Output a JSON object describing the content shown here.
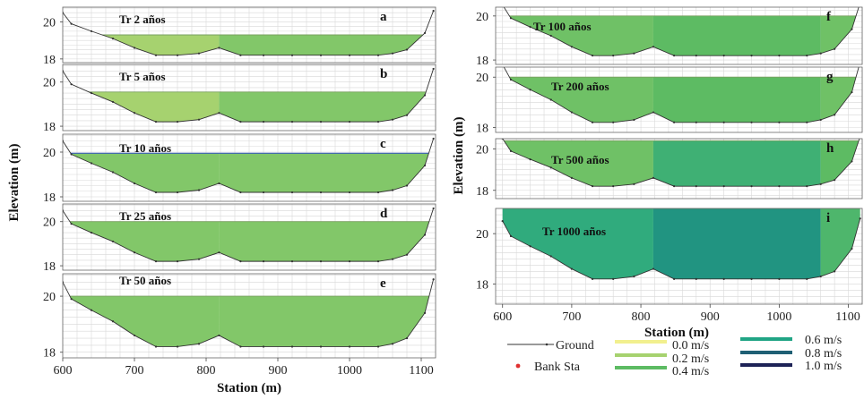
{
  "chart_data": [
    {
      "type": "area",
      "name": "left-figure",
      "xlabel": "Station (m)",
      "ylabel": "Elevation (m)",
      "xlim": [
        600,
        1120
      ],
      "xticks": [
        "600",
        "700",
        "800",
        "900",
        "1000",
        "1100"
      ],
      "ground": {
        "x": [
          600,
          612,
          640,
          670,
          700,
          730,
          760,
          790,
          818,
          848,
          880,
          920,
          960,
          1000,
          1040,
          1060,
          1080,
          1105,
          1117
        ],
        "y": [
          20.5,
          19.9,
          19.5,
          19.1,
          18.6,
          18.2,
          18.2,
          18.3,
          18.6,
          18.2,
          18.2,
          18.2,
          18.2,
          18.2,
          18.2,
          18.3,
          18.5,
          19.4,
          20.6
        ]
      },
      "bank_stations": [
        818,
        1060
      ],
      "panels": [
        {
          "label": "a",
          "title": "Tr 2 años",
          "ylim": [
            17.8,
            20.8
          ],
          "yticks": [
            18,
            20
          ],
          "wse": 19.3,
          "velocities": [
            0.2,
            0.3,
            0.3
          ]
        },
        {
          "label": "b",
          "title": "Tr 5 años",
          "ylim": [
            17.8,
            20.8
          ],
          "yticks": [
            18,
            20
          ],
          "wse": 19.55,
          "velocities": [
            0.2,
            0.3,
            0.3
          ]
        },
        {
          "label": "c",
          "title": "Tr 10 años",
          "ylim": [
            17.8,
            20.8
          ],
          "yticks": [
            18,
            20
          ],
          "wse": 19.95,
          "velocities": [
            0.3,
            0.3,
            0.3
          ]
        },
        {
          "label": "d",
          "title": "Tr 25 años",
          "ylim": [
            17.8,
            20.8
          ],
          "yticks": [
            18,
            20
          ],
          "wse": 20.0,
          "velocities": [
            0.3,
            0.3,
            0.3
          ]
        },
        {
          "label": "e",
          "title": "Tr 50 años",
          "ylim": [
            17.8,
            20.8
          ],
          "yticks": [
            18,
            20
          ],
          "wse": 20.0,
          "velocities": [
            0.3,
            0.3,
            0.3
          ]
        }
      ]
    },
    {
      "type": "area",
      "name": "right-figure",
      "xlabel": "Station (m)",
      "ylabel": "Elevation (m)",
      "xlim": [
        590,
        1120
      ],
      "xticks": [
        "600",
        "700",
        "800",
        "900",
        "1000",
        "1100"
      ],
      "ground": {
        "x": [
          600,
          612,
          640,
          670,
          700,
          730,
          760,
          790,
          818,
          848,
          880,
          920,
          960,
          1000,
          1040,
          1060,
          1080,
          1105,
          1117
        ],
        "y": [
          20.5,
          19.9,
          19.5,
          19.1,
          18.6,
          18.2,
          18.2,
          18.3,
          18.6,
          18.2,
          18.2,
          18.2,
          18.2,
          18.2,
          18.2,
          18.3,
          18.5,
          19.4,
          20.6
        ]
      },
      "bank_stations": [
        818,
        1060
      ],
      "panels": [
        {
          "label": "f",
          "title": "Tr 100 años",
          "ylim": [
            17.8,
            20.4
          ],
          "yticks": [
            18,
            20
          ],
          "wse": 20.0,
          "velocities": [
            0.35,
            0.4,
            0.35
          ]
        },
        {
          "label": "g",
          "title": "Tr 200 años",
          "ylim": [
            17.8,
            20.4
          ],
          "yticks": [
            18,
            20
          ],
          "wse": 20.0,
          "velocities": [
            0.35,
            0.4,
            0.35
          ]
        },
        {
          "label": "h",
          "title": "Tr 500 años",
          "ylim": [
            17.6,
            20.5
          ],
          "yticks": [
            18,
            20
          ],
          "wse": 20.4,
          "velocities": [
            0.35,
            0.5,
            0.4
          ]
        },
        {
          "label": "i",
          "title": "Tr 1000 años",
          "ylim": [
            17.2,
            21.0
          ],
          "yticks": [
            18,
            20
          ],
          "wse": 21.0,
          "velocities": [
            0.55,
            0.65,
            0.45
          ]
        }
      ]
    }
  ],
  "legend": {
    "ground_label": "Ground",
    "bank_label": "Bank Sta",
    "velocity_items": [
      {
        "label": "0.0 m/s",
        "color": "#f2f08e"
      },
      {
        "label": "0.2 m/s",
        "color": "#a6d26f"
      },
      {
        "label": "0.4 m/s",
        "color": "#5dbb63"
      },
      {
        "label": "0.6 m/s",
        "color": "#21a585"
      },
      {
        "label": "0.8 m/s",
        "color": "#1f5f74"
      },
      {
        "label": "1.0 m/s",
        "color": "#1d2256"
      }
    ]
  },
  "colors": {
    "ground": "#333333",
    "bank": "#e03030",
    "water_surface": "#3050c0",
    "grid": "#d8d8d8"
  }
}
